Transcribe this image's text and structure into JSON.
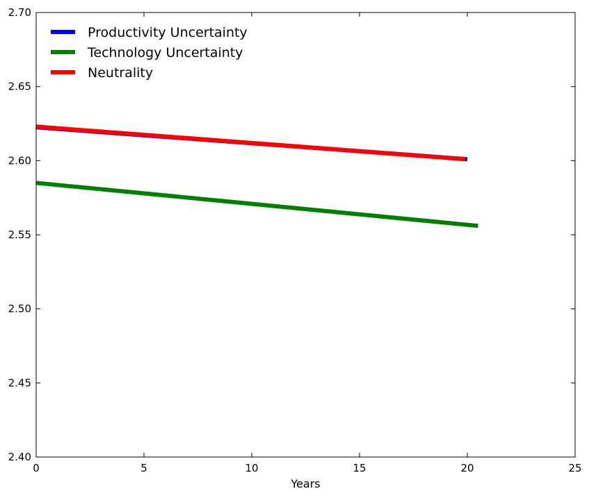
{
  "chart_data": {
    "type": "line",
    "title": "",
    "xlabel": "Years",
    "ylabel": "",
    "xlim": [
      0,
      25
    ],
    "ylim": [
      2.4,
      2.7
    ],
    "x_ticks": [
      0,
      5,
      10,
      15,
      20,
      25
    ],
    "x_tick_labels": [
      "0",
      "5",
      "10",
      "15",
      "20",
      "25"
    ],
    "y_ticks": [
      2.4,
      2.45,
      2.5,
      2.55,
      2.6,
      2.65,
      2.7
    ],
    "y_tick_labels": [
      "2.40",
      "2.45",
      "2.50",
      "2.55",
      "2.60",
      "2.65",
      "2.70"
    ],
    "grid": false,
    "legend_position": "top-left",
    "series": [
      {
        "name": "Productivity Uncertainty",
        "color": "#0000ff",
        "x": [
          0,
          20
        ],
        "y": [
          2.6225,
          2.601
        ]
      },
      {
        "name": "Technology Uncertainty",
        "color": "#008000",
        "x": [
          0,
          20.5
        ],
        "y": [
          2.585,
          2.556
        ]
      },
      {
        "name": "Neutrality",
        "color": "#ff0000",
        "x": [
          0,
          19.9
        ],
        "y": [
          2.623,
          2.601
        ]
      }
    ]
  }
}
